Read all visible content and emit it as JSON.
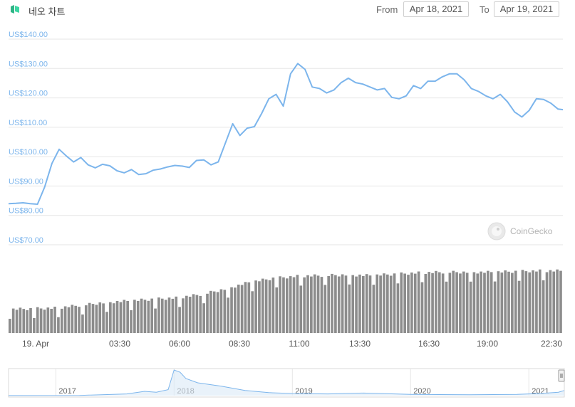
{
  "header": {
    "title": "네오 차트",
    "from_label": "From",
    "from_value": "Apr 18, 2021",
    "to_label": "To",
    "to_value": "Apr 19, 2021"
  },
  "watermark": "CoinGecko",
  "colors": {
    "line": "#7cb5ec",
    "volume": "#8c8c8c",
    "grid": "#e6e6e6",
    "accent": "#3cc99c"
  },
  "chart_data": [
    {
      "type": "line",
      "title": "",
      "ylabel": "",
      "ylim": [
        70,
        140
      ],
      "yticks": [
        70,
        80,
        90,
        100,
        110,
        120,
        130,
        140
      ],
      "ytick_labels": [
        "US$70.00",
        "US$80.00",
        "US$90.00",
        "US$100.00",
        "US$110.00",
        "US$120.00",
        "US$130.00",
        "US$140.00"
      ],
      "xticks": [
        "19. Apr",
        "03:30",
        "06:00",
        "08:30",
        "11:00",
        "13:30",
        "16:30",
        "19:00",
        "22:30"
      ],
      "x_range_hours": [
        0,
        23
      ],
      "grid": true,
      "series": [
        {
          "x_hours": [
            0.0,
            0.3,
            0.6,
            0.9,
            1.2,
            1.5,
            1.8,
            2.1,
            2.4,
            2.7,
            3.0,
            3.3,
            3.6,
            3.9,
            4.2,
            4.5,
            4.8,
            5.1,
            5.4,
            5.7,
            6.0,
            6.3,
            6.6,
            6.9,
            7.2,
            7.5,
            7.8,
            8.1,
            8.4,
            8.7,
            9.0,
            9.3,
            9.6,
            9.9,
            10.2,
            10.5,
            10.8,
            11.1,
            11.4,
            11.7,
            12.0,
            12.3,
            12.6,
            12.9,
            13.2,
            13.5,
            13.8,
            14.1,
            14.4,
            14.7,
            15.0,
            15.3,
            15.6,
            15.9,
            16.2,
            16.5,
            16.8,
            17.1,
            17.4,
            17.7,
            18.0,
            18.3,
            18.6,
            18.9,
            19.2,
            19.5,
            19.8,
            20.1,
            20.4,
            20.7,
            21.0,
            21.3,
            21.6,
            21.9,
            22.2,
            22.5,
            22.8,
            23.0
          ],
          "values": [
            82.3,
            82.4,
            82.6,
            82.3,
            82.1,
            88.0,
            96.0,
            100.8,
            98.5,
            96.5,
            98.0,
            95.5,
            94.5,
            95.7,
            95.2,
            93.5,
            92.8,
            93.9,
            92.2,
            92.5,
            93.7,
            94.1,
            94.8,
            95.3,
            95.1,
            94.6,
            97.0,
            97.2,
            95.5,
            96.5,
            103.0,
            109.5,
            105.5,
            108.0,
            108.5,
            113.0,
            118.0,
            119.5,
            115.5,
            126.5,
            130.0,
            128.0,
            122.0,
            121.5,
            120.0,
            121.0,
            123.5,
            125.0,
            123.5,
            123.0,
            122.0,
            121.0,
            121.5,
            118.5,
            118.0,
            119.0,
            122.5,
            121.5,
            124.0,
            124.0,
            125.5,
            126.5,
            126.5,
            124.5,
            121.5,
            120.5,
            119.0,
            118.0,
            119.5,
            117.0,
            113.5,
            111.8,
            114.0,
            118.0,
            117.8,
            116.5,
            114.5,
            114.3
          ]
        }
      ]
    },
    {
      "type": "bar",
      "title": "",
      "ylabel": "",
      "ylim": [
        0,
        100
      ],
      "y_unit": "relative volume (% of axis)",
      "bar_count": 160,
      "x_range_hours": [
        0,
        23
      ],
      "profile_x_hours": [
        0,
        2,
        4,
        6,
        7,
        8,
        9,
        10,
        11,
        12,
        13,
        14,
        15,
        16,
        17,
        18,
        19,
        20,
        21,
        22,
        23
      ],
      "profile_values": [
        35,
        37,
        45,
        50,
        52,
        57,
        65,
        75,
        81,
        84,
        85,
        86,
        85,
        87,
        89,
        90,
        90,
        90,
        91,
        92,
        92
      ]
    },
    {
      "type": "area",
      "title": "",
      "xticks": [
        "2017",
        "2018",
        "2019",
        "2020",
        "2021"
      ],
      "x_years": [
        2016.6,
        2017.2,
        2017.6,
        2017.75,
        2017.85,
        2017.95,
        2018.0,
        2018.05,
        2018.1,
        2018.2,
        2018.4,
        2018.6,
        2018.8,
        2019.0,
        2019.3,
        2019.6,
        2020.0,
        2020.5,
        2020.9,
        2021.1,
        2021.25,
        2021.3
      ],
      "values": [
        0.2,
        0.5,
        4,
        10,
        8,
        14,
        60,
        55,
        40,
        30,
        22,
        12,
        7,
        5,
        4,
        6,
        3,
        2,
        3,
        5,
        8,
        12
      ]
    }
  ]
}
